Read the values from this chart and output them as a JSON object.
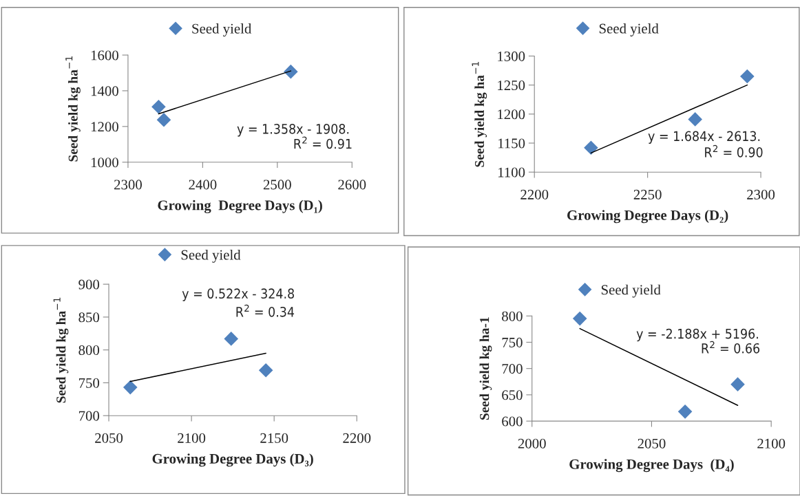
{
  "chart_data": [
    {
      "type": "scatter",
      "xlabel": "Growing  Degree Days (D₁)",
      "ylabel": "Seed yield kg ha$^{−1}$",
      "marker": "diamond",
      "legend": "top",
      "grid": false,
      "xlim": [
        2300,
        2600
      ],
      "xticks": [
        2300,
        2400,
        2500,
        2600
      ],
      "ylim": [
        1000,
        1600
      ],
      "yticks": [
        1000,
        1200,
        1400,
        1600
      ],
      "series": [
        {
          "name": "Seed yield",
          "color": "#4f81bd",
          "x": [
            2341,
            2348,
            2518
          ],
          "values": [
            1310,
            1237,
            1507
          ]
        },
        {
          "type": "line",
          "color": "#000000",
          "marker": "none",
          "x": [
            2341,
            2518
          ],
          "values": [
            1271,
            1511
          ]
        }
      ],
      "annotations": [
        "y = 1.358x - 1908.",
        "R$^{2}$ = 0.91"
      ]
    },
    {
      "type": "scatter",
      "xlabel": "Growing Degree Days (D₂)",
      "ylabel": "Seed yield kg ha$^{−1}$",
      "marker": "diamond",
      "legend": "top",
      "grid": false,
      "xlim": [
        2200,
        2300
      ],
      "xticks": [
        2200,
        2250,
        2300
      ],
      "ylim": [
        1100,
        1300
      ],
      "yticks": [
        1100,
        1150,
        1200,
        1250,
        1300
      ],
      "series": [
        {
          "name": "Seed yield",
          "color": "#4f81bd",
          "x": [
            2225,
            2271,
            2294
          ],
          "values": [
            1142,
            1191,
            1265
          ]
        },
        {
          "type": "line",
          "color": "#000000",
          "marker": "none",
          "x": [
            2225,
            2294
          ],
          "values": [
            1133,
            1250
          ]
        }
      ],
      "annotations": [
        "y = 1.684x - 2613.",
        "R$^{2}$ = 0.90"
      ]
    },
    {
      "type": "scatter",
      "xlabel": "Growing Degree Days (D₃)",
      "ylabel": "Seed yield kg ha$^{−1}$",
      "marker": "diamond",
      "legend": "top",
      "grid": false,
      "xlim": [
        2050,
        2200
      ],
      "xticks": [
        2050,
        2100,
        2150,
        2200
      ],
      "ylim": [
        700,
        900
      ],
      "yticks": [
        700,
        750,
        800,
        850,
        900
      ],
      "series": [
        {
          "name": "Seed yield",
          "color": "#4f81bd",
          "x": [
            2063,
            2124,
            2145
          ],
          "values": [
            743,
            817,
            769
          ]
        },
        {
          "type": "line",
          "color": "#000000",
          "marker": "none",
          "x": [
            2063,
            2145
          ],
          "values": [
            752,
            795
          ]
        }
      ],
      "annotations": [
        "y = 0.522x - 324.8",
        "R$^{2}$ = 0.34"
      ]
    },
    {
      "type": "scatter",
      "xlabel": "Growing Degree Days  (D₄)",
      "ylabel": "Seed yield kg ha-1",
      "marker": "diamond",
      "legend": "top",
      "grid": false,
      "xlim": [
        2000,
        2100
      ],
      "xticks": [
        2000,
        2050,
        2100
      ],
      "ylim": [
        600,
        800
      ],
      "yticks": [
        600,
        650,
        700,
        750,
        800
      ],
      "series": [
        {
          "name": "Seed yield",
          "color": "#4f81bd",
          "x": [
            2020,
            2064,
            2086
          ],
          "values": [
            795,
            618,
            670
          ]
        },
        {
          "type": "line",
          "color": "#000000",
          "marker": "none",
          "x": [
            2020,
            2086
          ],
          "values": [
            776,
            630
          ]
        }
      ],
      "annotations": [
        "y = -2.188x + 5196.",
        "R$^{2}$ = 0.66"
      ]
    }
  ]
}
